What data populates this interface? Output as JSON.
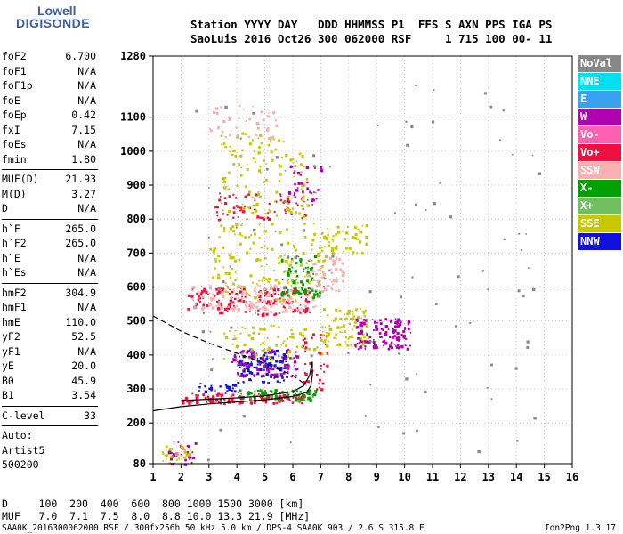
{
  "logo": {
    "line1": "Lowell",
    "line2": "DIGISONDE"
  },
  "header": {
    "line1": "Station YYYY DAY   DDD HHMMSS P1  FFS S AXN PPS IGA PS",
    "line2": "SaoLuis 2016 Oct26 300 062000 RSF     1 715 100 00- 11"
  },
  "params": {
    "group1": [
      {
        "label": "foF2",
        "value": "6.700"
      },
      {
        "label": "foF1",
        "value": "N/A"
      },
      {
        "label": "foF1p",
        "value": "N/A"
      },
      {
        "label": "foE",
        "value": "N/A"
      },
      {
        "label": "foEp",
        "value": "0.42"
      },
      {
        "label": "fxI",
        "value": "7.15"
      },
      {
        "label": "foEs",
        "value": "N/A"
      },
      {
        "label": "fmin",
        "value": "1.80"
      }
    ],
    "group2": [
      {
        "label": "MUF(D)",
        "value": "21.93"
      },
      {
        "label": "M(D)",
        "value": "3.27"
      },
      {
        "label": "D",
        "value": "N/A"
      }
    ],
    "group3": [
      {
        "label": "h`F",
        "value": "265.0"
      },
      {
        "label": "h`F2",
        "value": "265.0"
      },
      {
        "label": "h`E",
        "value": "N/A"
      },
      {
        "label": "h`Es",
        "value": "N/A"
      }
    ],
    "group4": [
      {
        "label": "hmF2",
        "value": "304.9"
      },
      {
        "label": "hmF1",
        "value": "N/A"
      },
      {
        "label": "hmE",
        "value": "110.0"
      },
      {
        "label": "yF2",
        "value": "52.5"
      },
      {
        "label": "yF1",
        "value": "N/A"
      },
      {
        "label": "yE",
        "value": "20.0"
      },
      {
        "label": "B0",
        "value": "45.9"
      },
      {
        "label": "B1",
        "value": "3.54"
      }
    ],
    "group5": [
      {
        "label": "C-level",
        "value": "33"
      }
    ],
    "auto": [
      "Auto:",
      "Artist5",
      "500200"
    ]
  },
  "legend": [
    {
      "label": "NoVal",
      "color": "#888888"
    },
    {
      "label": "NNE",
      "color": "#00e0f0"
    },
    {
      "label": "E",
      "color": "#3aa0f0"
    },
    {
      "label": "W",
      "color": "#b000b0"
    },
    {
      "label": "Vo-",
      "color": "#ff60b0"
    },
    {
      "label": "Vo+",
      "color": "#f01040"
    },
    {
      "label": "SSW",
      "color": "#f8b0b0"
    },
    {
      "label": "X-",
      "color": "#00a000"
    },
    {
      "label": "X+",
      "color": "#70c060"
    },
    {
      "label": "SSE",
      "color": "#c8c800"
    },
    {
      "label": "NNW",
      "color": "#1010e0"
    }
  ],
  "dmuf": {
    "d_line": "D     100  200  400  600  800 1000 1500 3000 [km]",
    "muf_line": "MUF   7.0  7.1  7.5  8.0  8.8 10.0 13.3 21.9 [MHz]"
  },
  "footer": {
    "left": "SAA0K_2016300062000.RSF / 300fx256h 50 kHz 5.0 km / DPS-4 SAA0K 903 / 2.6 S 315.8 E",
    "version": "Ion2Png 1.3.17"
  },
  "chart_data": {
    "type": "scatter",
    "xlim": [
      1,
      16
    ],
    "ylim": [
      80,
      1280
    ],
    "x_ticks": [
      1,
      2,
      3,
      4,
      5,
      6,
      7,
      8,
      9,
      10,
      11,
      12,
      13,
      14,
      15,
      16
    ],
    "y_ticks": [
      80,
      200,
      300,
      400,
      500,
      600,
      700,
      800,
      900,
      1000,
      1100,
      1280
    ],
    "grid": "dotted",
    "legend_position": "right",
    "clusters": [
      {
        "series": "Vo+",
        "xr": [
          2.0,
          6.4
        ],
        "yr": [
          260,
          290
        ],
        "n": 140
      },
      {
        "series": "X-",
        "xr": [
          4.0,
          6.8
        ],
        "yr": [
          270,
          300
        ],
        "n": 70
      },
      {
        "series": "NNW",
        "xr": [
          2.5,
          4.0
        ],
        "yr": [
          295,
          320
        ],
        "n": 20
      },
      {
        "series": "NNW",
        "xr": [
          4.0,
          5.8
        ],
        "yr": [
          320,
          420
        ],
        "n": 120
      },
      {
        "series": "W",
        "xr": [
          3.8,
          6.2
        ],
        "yr": [
          340,
          420
        ],
        "n": 90
      },
      {
        "series": "SSE",
        "xr": [
          3.5,
          7.0
        ],
        "yr": [
          390,
          490
        ],
        "n": 70
      },
      {
        "series": "Vo+",
        "xr": [
          6.3,
          7.2
        ],
        "yr": [
          300,
          470
        ],
        "n": 40
      },
      {
        "series": "SSE",
        "xr": [
          7.0,
          8.7
        ],
        "yr": [
          430,
          540
        ],
        "n": 90
      },
      {
        "series": "W",
        "xr": [
          8.2,
          10.2
        ],
        "yr": [
          420,
          510
        ],
        "n": 130
      },
      {
        "series": "Vo+",
        "xr": [
          2.2,
          6.6
        ],
        "yr": [
          520,
          600
        ],
        "n": 160
      },
      {
        "series": "SSW",
        "xr": [
          2.3,
          6.8
        ],
        "yr": [
          530,
          610
        ],
        "n": 130
      },
      {
        "series": "SSE",
        "xr": [
          3.0,
          7.2
        ],
        "yr": [
          560,
          790
        ],
        "n": 160
      },
      {
        "series": "X-",
        "xr": [
          5.5,
          7.0
        ],
        "yr": [
          570,
          700
        ],
        "n": 70
      },
      {
        "series": "SSW",
        "xr": [
          6.5,
          7.8
        ],
        "yr": [
          590,
          690
        ],
        "n": 60
      },
      {
        "series": "SSE",
        "xr": [
          7.0,
          8.6
        ],
        "yr": [
          700,
          790
        ],
        "n": 50
      },
      {
        "series": "Vo+",
        "xr": [
          3.2,
          6.8
        ],
        "yr": [
          800,
          880
        ],
        "n": 70
      },
      {
        "series": "SSE",
        "xr": [
          3.4,
          6.5
        ],
        "yr": [
          810,
          1060
        ],
        "n": 120
      },
      {
        "series": "W",
        "xr": [
          5.8,
          7.0
        ],
        "yr": [
          850,
          960
        ],
        "n": 30
      },
      {
        "series": "SSW",
        "xr": [
          3.0,
          5.5
        ],
        "yr": [
          1040,
          1140
        ],
        "n": 40
      },
      {
        "series": "W",
        "xr": [
          1.5,
          2.5
        ],
        "yr": [
          80,
          150
        ],
        "n": 30
      },
      {
        "series": "SSE",
        "xr": [
          1.3,
          2.3
        ],
        "yr": [
          82,
          140
        ],
        "n": 25
      },
      {
        "series": "NoVal",
        "xr": [
          2.5,
          14.8
        ],
        "yr": [
          90,
          1200
        ],
        "n": 110
      }
    ],
    "curves": [
      {
        "name": "profile",
        "style": "solid",
        "points": [
          [
            1,
            236
          ],
          [
            2,
            248
          ],
          [
            3,
            256
          ],
          [
            4,
            262
          ],
          [
            5,
            268
          ],
          [
            6,
            278
          ],
          [
            6.5,
            290
          ],
          [
            6.65,
            310
          ],
          [
            6.7,
            340
          ],
          [
            6.7,
            380
          ]
        ]
      },
      {
        "name": "profile2",
        "style": "solid",
        "points": [
          [
            2,
            266
          ],
          [
            3,
            270
          ],
          [
            4,
            274
          ],
          [
            5,
            280
          ],
          [
            6,
            292
          ],
          [
            6.4,
            310
          ],
          [
            6.6,
            340
          ],
          [
            6.7,
            380
          ]
        ]
      },
      {
        "name": "topside",
        "style": "dashed",
        "points": [
          [
            1,
            515
          ],
          [
            2,
            470
          ],
          [
            3,
            435
          ],
          [
            4,
            405
          ],
          [
            5,
            375
          ],
          [
            6,
            340
          ],
          [
            6.5,
            310
          ]
        ]
      }
    ]
  }
}
